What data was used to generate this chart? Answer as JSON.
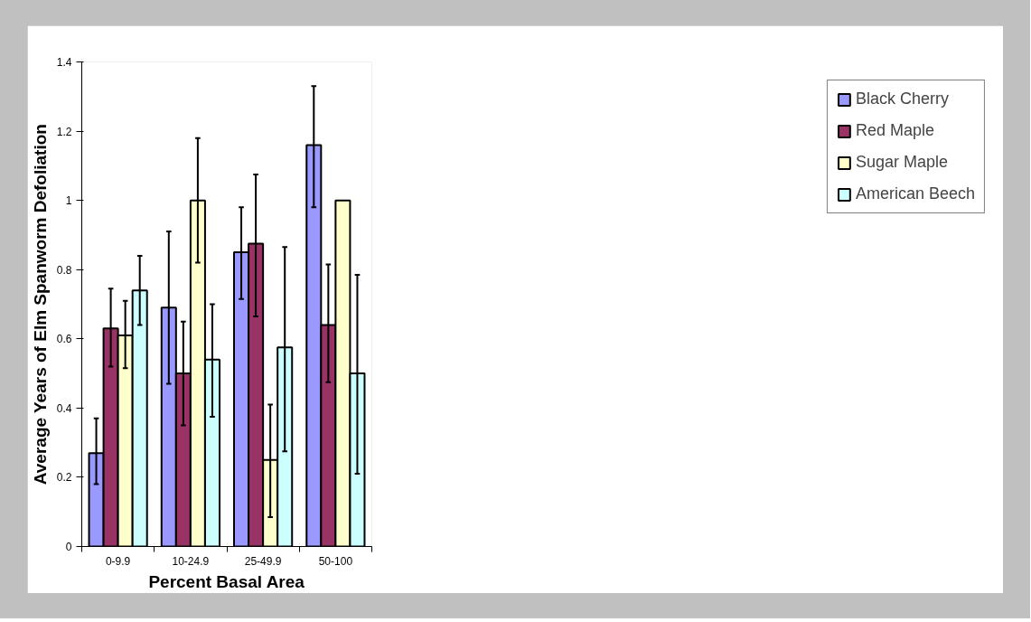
{
  "chart_data": {
    "type": "bar",
    "xlabel": "Percent Basal Area",
    "ylabel": "Average Years of Elm Spanworm Defoliation",
    "categories": [
      "0-9.9",
      "10-24.9",
      "25-49.9",
      "50-100"
    ],
    "series": [
      {
        "name": "Black Cherry",
        "color": "#9999ff",
        "values": [
          0.27,
          0.69,
          0.85,
          1.16
        ],
        "errors": [
          [
            0.18,
            0.37
          ],
          [
            0.47,
            0.91
          ],
          [
            0.715,
            0.98
          ],
          [
            0.98,
            1.33
          ]
        ]
      },
      {
        "name": "Red Maple",
        "color": "#993366",
        "values": [
          0.63,
          0.5,
          0.875,
          0.64
        ],
        "errors": [
          [
            0.52,
            0.745
          ],
          [
            0.35,
            0.65
          ],
          [
            0.665,
            1.075
          ],
          [
            0.475,
            0.815
          ]
        ]
      },
      {
        "name": "Sugar Maple",
        "color": "#ffffcc",
        "values": [
          0.61,
          1.0,
          0.25,
          1.0
        ],
        "errors": [
          [
            0.515,
            0.71
          ],
          [
            0.82,
            1.18
          ],
          [
            0.085,
            0.41
          ],
          null
        ]
      },
      {
        "name": "American Beech",
        "color": "#ccffff",
        "values": [
          0.74,
          0.54,
          0.575,
          0.5
        ],
        "errors": [
          [
            0.64,
            0.84
          ],
          [
            0.375,
            0.7
          ],
          [
            0.275,
            0.865
          ],
          [
            0.21,
            0.785
          ]
        ]
      }
    ],
    "ylim": [
      0,
      1.4
    ],
    "yticks": [
      0,
      0.2,
      0.4,
      0.6,
      0.8,
      1,
      1.2,
      1.4
    ],
    "grid": false,
    "legend": "right"
  }
}
